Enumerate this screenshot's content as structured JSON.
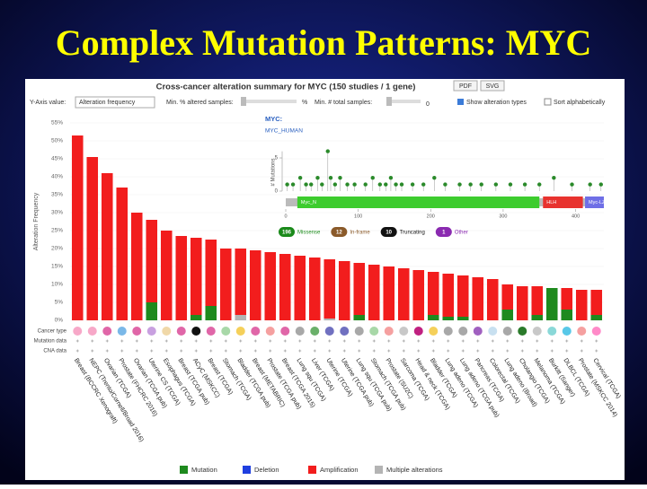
{
  "slide_title": "Complex Mutation Patterns: MYC",
  "header": "Cross-cancer alteration summary for MYC (150 studies / 1 gene)",
  "controls": {
    "pdf": "PDF",
    "svg": "SVG",
    "y_axis_label": "Y-Axis value:",
    "y_axis_value": "Alteration frequency",
    "min_pct": "Min. % altered samples:",
    "pct_unit": "%",
    "min_total": "Min. # total samples:",
    "min_total_value": "0",
    "show_types": "Show alteration types",
    "sort_alpha": "Sort alphabetically"
  },
  "row_labels": [
    "Cancer type",
    "Mutation data",
    "CNA data"
  ],
  "chart_data": [
    {
      "type": "stacked_bar",
      "ylabel": "Alteration Frequency",
      "categories": [
        "Breast (BCCRC Xenograft)",
        "NEPC (Trento/Cornell/Broad 2016)",
        "Ovarian (TCGA)",
        "Prostate (FHCRC 2016)",
        "Ovarian (TCGA pub)",
        "Uterine CS (TCGA)",
        "Esophagus (TCGA)",
        "Breast (TCGA pub)",
        "ACyC (MSKCC)",
        "Breast (TCGA)",
        "Stomach (TCGA)",
        "Bladder (TCGA pub)",
        "Breast (METABRIC)",
        "Prostate (TCGA pub)",
        "Breast (TCGA 2015)",
        "Lung squ (TCGA)",
        "Liver (TCGA)",
        "Uterine (TCGA)",
        "Uterine (TCGA pub)",
        "Lung squ (TCGA pub)",
        "Stomach (TCGA pub)",
        "Prostate (SU2C)",
        "Sarcoma (TCGA)",
        "Head & neck (TCGA)",
        "Bladder (TCGA)",
        "Lung adeno (TCGA)",
        "Lung adeno (TCGA pub)",
        "Pancreas (TCGA)",
        "Colorectal (TCGA)",
        "Lung adeno (Broad)",
        "Cholangio (TCGA)",
        "Melanoma (TCGA)",
        "Burkitt (Sanger)",
        "DLBCL (TCGA)",
        "Prostate (MSKCC 2014)",
        "Cervical (TCGA)"
      ],
      "series": [
        {
          "name": "Mutation",
          "color": "#1e8a1e",
          "values": [
            0,
            0,
            0,
            0,
            0,
            5,
            0,
            0,
            1.5,
            4,
            0,
            0,
            0,
            0,
            0,
            0,
            0,
            0,
            0,
            1.5,
            0,
            0,
            0,
            0,
            1.5,
            1,
            1,
            0,
            0,
            3,
            0,
            1.5,
            9,
            3,
            0,
            1.5
          ]
        },
        {
          "name": "Deletion",
          "color": "#1f3fe0",
          "values": [
            0,
            0,
            0,
            0,
            0,
            0,
            0,
            0,
            0,
            0,
            0,
            0,
            0,
            0,
            0,
            0,
            0,
            0,
            0,
            0,
            0,
            0,
            0,
            0,
            0,
            0,
            0,
            0,
            0,
            0,
            0,
            0,
            0,
            0,
            0,
            0
          ]
        },
        {
          "name": "Amplification",
          "color": "#f21d1d",
          "values": [
            51.5,
            45.5,
            41,
            37,
            30,
            23,
            25,
            23.5,
            21.5,
            18.5,
            20,
            18.5,
            19.5,
            19,
            18.5,
            18,
            17.5,
            16.5,
            16.5,
            14.5,
            15.5,
            15,
            14.5,
            14,
            12,
            12,
            11.5,
            12,
            11.5,
            7,
            9.5,
            8,
            0,
            6,
            8.5,
            7
          ]
        },
        {
          "name": "Multiple alterations",
          "color": "#b4b4b4",
          "values": [
            0,
            0,
            0,
            0,
            0,
            0,
            0,
            0,
            0,
            0,
            0,
            1.5,
            0,
            0,
            0,
            0,
            0,
            0.5,
            0,
            0,
            0,
            0,
            0,
            0,
            0,
            0,
            0,
            0,
            0,
            0,
            0,
            0,
            0,
            0,
            0,
            0
          ]
        }
      ],
      "ylim": [
        0,
        55
      ],
      "yticks": [
        {
          "value": 0,
          "label": "0%"
        },
        {
          "value": 5,
          "label": "5%"
        },
        {
          "value": 10,
          "label": "10%"
        },
        {
          "value": 15,
          "label": "15%"
        },
        {
          "value": 20,
          "label": "20%"
        },
        {
          "value": 25,
          "label": "25%"
        },
        {
          "value": 30,
          "label": "30%"
        },
        {
          "value": 35,
          "label": "35%"
        },
        {
          "value": 40,
          "label": "40%"
        },
        {
          "value": 45,
          "label": "45%"
        },
        {
          "value": 50,
          "label": "50%"
        },
        {
          "value": 55,
          "label": "55%"
        }
      ],
      "grid": true
    },
    {
      "type": "lollipop",
      "title": "MYC:",
      "subtitle": "MYC_HUMAN",
      "ylabel": "# Mutations",
      "x": [
        2,
        10,
        20,
        28,
        35,
        44,
        50,
        58,
        62,
        68,
        75,
        85,
        95,
        110,
        120,
        130,
        138,
        145,
        152,
        160,
        175,
        190,
        205,
        220,
        240,
        255,
        270,
        290,
        310,
        330,
        350,
        370,
        395,
        420,
        435
      ],
      "values": [
        1,
        1,
        2,
        1,
        1,
        2,
        1,
        6,
        2,
        1,
        2,
        1,
        1,
        1,
        2,
        1,
        1,
        2,
        1,
        1,
        1,
        1,
        2,
        1,
        1,
        1,
        1,
        1,
        1,
        1,
        1,
        2,
        1,
        1,
        1
      ],
      "color": "#2a8a2a",
      "xlim": [
        0,
        439
      ],
      "xticks": [
        0,
        100,
        200,
        300,
        400
      ],
      "ylim": [
        0,
        6
      ],
      "yticks": [
        0,
        5
      ],
      "domains": [
        {
          "name": "Myc_N",
          "start": 16,
          "end": 350,
          "color": "#3dcc2e"
        },
        {
          "name": "HLH",
          "start": 355,
          "end": 410,
          "color": "#e8322e"
        },
        {
          "name": "Myc-LZ",
          "start": 413,
          "end": 439,
          "color": "#6f6fe6"
        }
      ],
      "legend": [
        {
          "count": "196",
          "label": "Missense",
          "color": "#1a8a1a"
        },
        {
          "count": "12",
          "label": "In-frame",
          "color": "#8a5a2a"
        },
        {
          "count": "10",
          "label": "Truncating",
          "color": "#111111"
        },
        {
          "count": "1",
          "label": "Other",
          "color": "#8a2ab0"
        }
      ]
    }
  ]
}
